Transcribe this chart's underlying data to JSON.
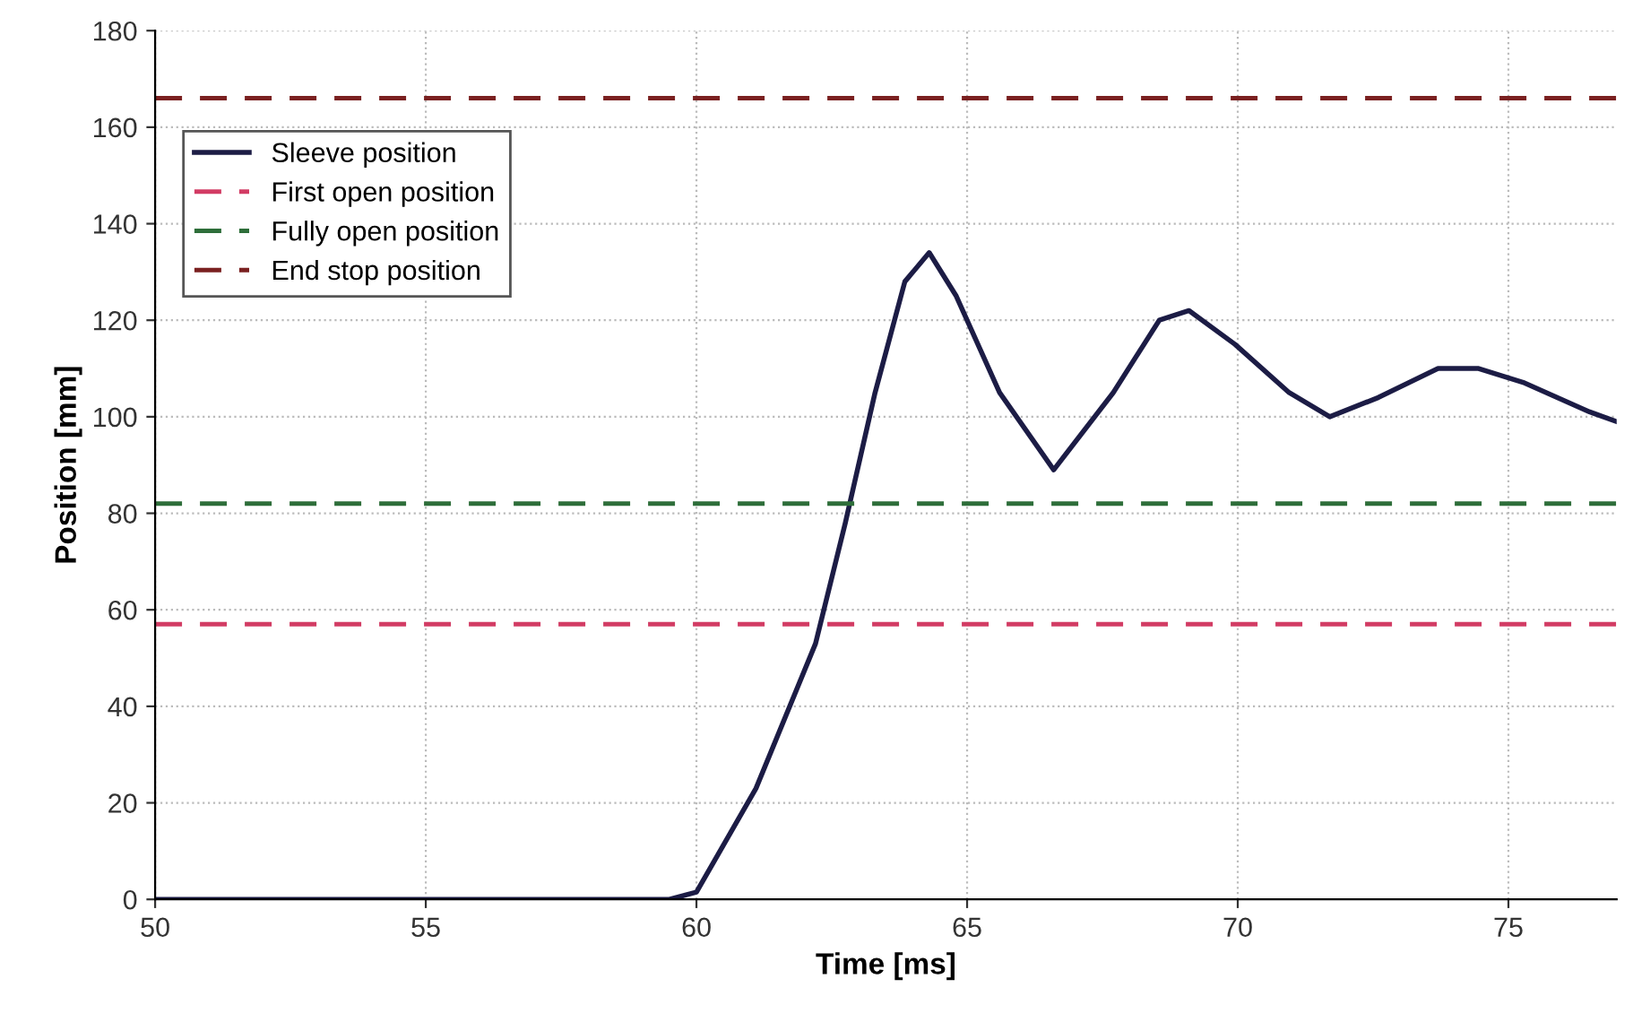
{
  "chart_data": {
    "type": "line",
    "xlabel": "Time [ms]",
    "ylabel": "Position [mm]",
    "x": [
      50,
      52,
      54,
      56,
      58,
      59.5,
      60,
      61.1,
      62.2,
      62.75,
      63.3,
      63.85,
      64.3,
      64.8,
      65.6,
      66.6,
      67.7,
      68.55,
      69.1,
      69.95,
      70.95,
      71.7,
      72.6,
      73.7,
      74.45,
      75.3,
      76.5,
      77
    ],
    "series": [
      {
        "name": "Sleeve position",
        "color": "#1c1c45",
        "values": [
          0,
          0,
          0,
          0,
          0,
          0,
          1.5,
          23,
          53,
          78,
          105,
          128,
          134,
          125,
          105,
          89,
          105,
          120,
          122,
          115,
          105,
          100,
          104,
          110,
          110,
          107,
          101,
          99
        ]
      }
    ],
    "ref_lines": [
      {
        "axis": "y",
        "value": 57,
        "label": "First open position",
        "color": "#d23c64",
        "line_style": "dashed"
      },
      {
        "axis": "y",
        "value": 82,
        "label": "Fully open position",
        "color": "#2e6e3a",
        "line_style": "dashed"
      },
      {
        "axis": "y",
        "value": 166,
        "label": "End stop position",
        "color": "#7a2020",
        "line_style": "dashed"
      }
    ],
    "xlim": [
      50,
      77
    ],
    "xticks": [
      50,
      55,
      60,
      65,
      70,
      75
    ],
    "ylim": [
      0,
      180
    ],
    "yticks": [
      0,
      20,
      40,
      60,
      80,
      100,
      120,
      140,
      160,
      180
    ],
    "grid": true,
    "legend": "top left",
    "line_style": "solid",
    "marker": "none"
  }
}
